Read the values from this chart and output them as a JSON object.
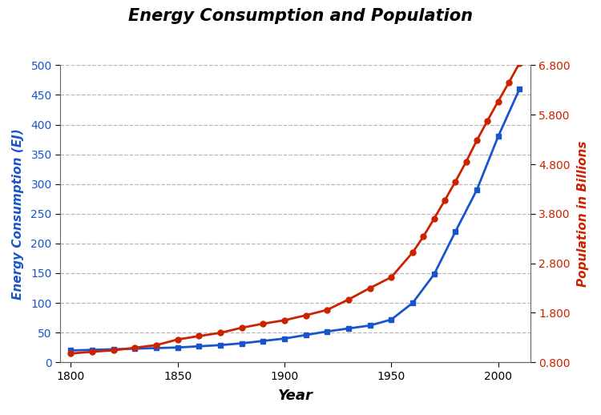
{
  "title": "Energy Consumption and Population",
  "xlabel": "Year",
  "ylabel_left": "Energy Consumption (EJ)",
  "ylabel_right": "Population in Billions",
  "energy_years": [
    1800,
    1810,
    1820,
    1830,
    1840,
    1850,
    1860,
    1870,
    1880,
    1890,
    1900,
    1910,
    1920,
    1930,
    1940,
    1950,
    1960,
    1970,
    1980,
    1990,
    2000,
    2010
  ],
  "energy_values": [
    20,
    21,
    22,
    23,
    24,
    25,
    27,
    29,
    32,
    36,
    40,
    46,
    52,
    57,
    62,
    72,
    100,
    148,
    220,
    290,
    380,
    460
  ],
  "pop_years": [
    1800,
    1810,
    1820,
    1830,
    1840,
    1850,
    1860,
    1870,
    1880,
    1890,
    1900,
    1910,
    1920,
    1930,
    1940,
    1950,
    1960,
    1965,
    1970,
    1975,
    1980,
    1985,
    1990,
    1995,
    2000,
    2005,
    2010
  ],
  "pop_values": [
    0.978,
    1.014,
    1.042,
    1.095,
    1.148,
    1.262,
    1.33,
    1.396,
    1.499,
    1.58,
    1.65,
    1.75,
    1.86,
    2.07,
    2.3,
    2.52,
    3.02,
    3.34,
    3.7,
    4.07,
    4.45,
    4.85,
    5.28,
    5.68,
    6.07,
    6.45,
    6.84
  ],
  "energy_color": "#1855cc",
  "pop_color": "#cc2200",
  "ylim_left": [
    0,
    500
  ],
  "ylim_right": [
    0.8,
    6.8
  ],
  "yticks_left": [
    0,
    50,
    100,
    150,
    200,
    250,
    300,
    350,
    400,
    450,
    500
  ],
  "yticks_right": [
    0.8,
    1.8,
    2.8,
    3.8,
    4.8,
    5.8,
    6.8
  ],
  "xlim": [
    1795,
    2015
  ],
  "xticks": [
    1800,
    1850,
    1900,
    1950,
    2000
  ],
  "bg_color": "#ffffff",
  "grid_color": "#999999"
}
